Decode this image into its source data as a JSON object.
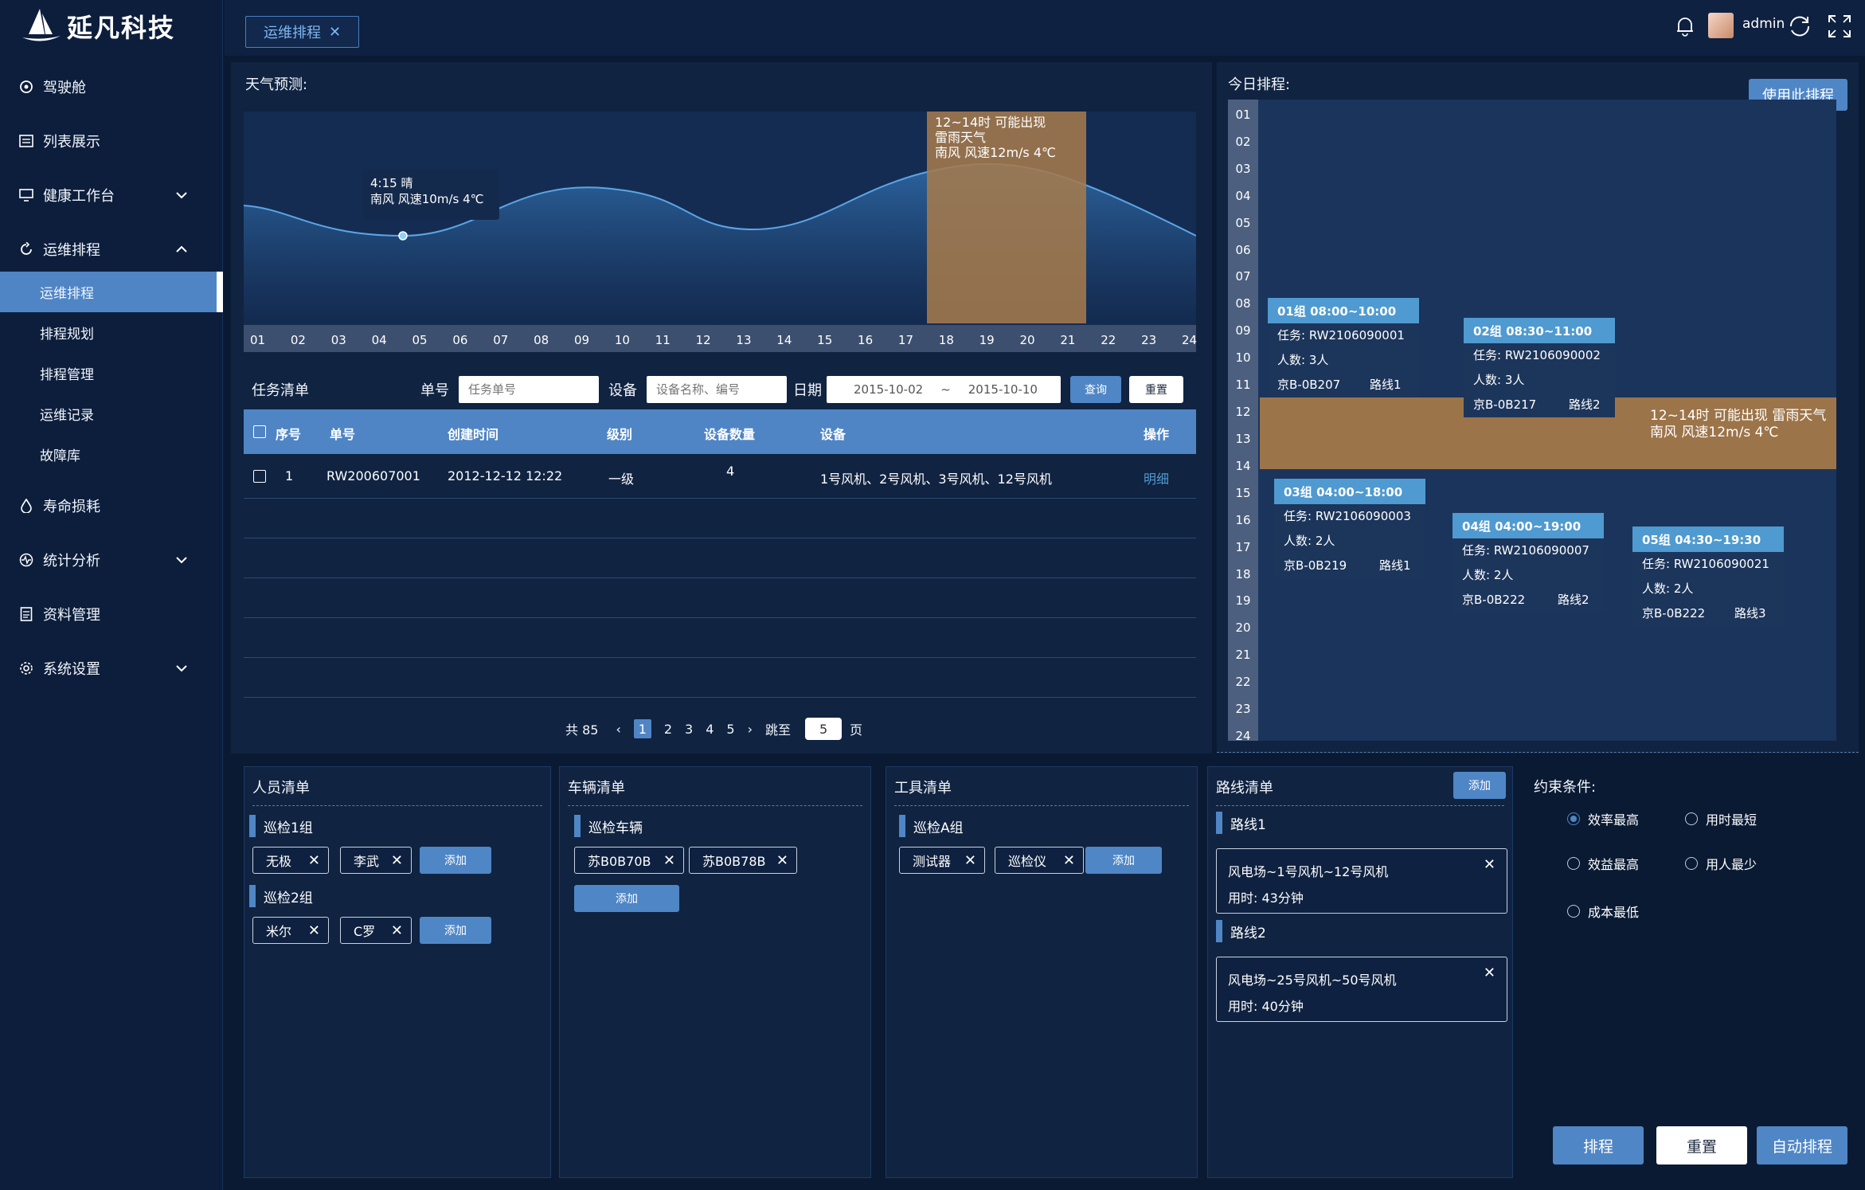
{
  "brand": {
    "name": "延凡科技"
  },
  "sidebar": {
    "items": [
      {
        "label": "驾驶舱"
      },
      {
        "label": "列表展示"
      },
      {
        "label": "健康工作台"
      },
      {
        "label": "运维排程"
      },
      {
        "label": "寿命损耗"
      },
      {
        "label": "统计分析"
      },
      {
        "label": "资料管理"
      },
      {
        "label": "系统设置"
      }
    ],
    "subitems": [
      {
        "label": "运维排程"
      },
      {
        "label": "排程规划"
      },
      {
        "label": "排程管理"
      },
      {
        "label": "运维记录"
      },
      {
        "label": "故障库"
      }
    ]
  },
  "topbar": {
    "tab": "运维排程",
    "user": "admin"
  },
  "weather": {
    "title": "天气预测:",
    "tooltip1": {
      "line1": "4:15 晴",
      "line2": "南风 风速10m/s  4℃"
    },
    "tooltip2": {
      "line1": "12~14时 可能出现",
      "line2": "雷雨天气",
      "line3": "南风 风速12m/s  4℃"
    },
    "hours": [
      "01",
      "02",
      "03",
      "04",
      "05",
      "06",
      "07",
      "08",
      "09",
      "10",
      "11",
      "12",
      "13",
      "14",
      "15",
      "16",
      "17",
      "18",
      "19",
      "20",
      "21",
      "22",
      "23",
      "24"
    ]
  },
  "tasks": {
    "title": "任务清单",
    "filter": {
      "no_label": "单号",
      "no_placeholder": "任务单号",
      "device_label": "设备",
      "device_placeholder": "设备名称、编号",
      "date_label": "日期",
      "date_from": "2015-10-02",
      "date_sep": "~",
      "date_to": "2015-10-10",
      "query": "查询",
      "reset": "重置"
    },
    "columns": [
      "序号",
      "单号",
      "创建时间",
      "级别",
      "设备数量",
      "设备",
      "操作"
    ],
    "rows": [
      {
        "index": "1",
        "no": "RW200607001",
        "created": "2012-12-12 12:22",
        "level": "一级",
        "count": "4",
        "devices": "1号风机、2号风机、3号风机、12号风机",
        "action": "明细"
      }
    ],
    "pager": {
      "total": "共 85",
      "pages": [
        "1",
        "2",
        "3",
        "4",
        "5"
      ],
      "goto": "跳至",
      "goto_value": "5",
      "page_unit": "页"
    }
  },
  "schedule": {
    "title": "今日排程:",
    "use_button": "使用此排程",
    "hours": [
      "01",
      "02",
      "03",
      "04",
      "05",
      "06",
      "07",
      "08",
      "09",
      "10",
      "11",
      "12",
      "13",
      "14",
      "15",
      "16",
      "17",
      "18",
      "19",
      "20",
      "21",
      "22",
      "23",
      "24"
    ],
    "storm": {
      "line1": "12~14时 可能出现 雷雨天气",
      "line2": "南风 风速12m/s  4℃"
    },
    "cards": [
      {
        "header": "01组  08:00~10:00",
        "task": "任务: RW2106090001",
        "people": "人数: 3人",
        "plate": "京B-0B207",
        "route": "路线1"
      },
      {
        "header": "02组  08:30~11:00",
        "task": "任务: RW2106090002",
        "people": "人数: 3人",
        "plate": "京B-0B217",
        "route": "路线2"
      },
      {
        "header": "03组  04:00~18:00",
        "task": "任务: RW2106090003",
        "people": "人数: 2人",
        "plate": "京B-0B219",
        "route": "路线1"
      },
      {
        "header": "04组  04:00~19:00",
        "task": "任务: RW2106090007",
        "people": "人数: 2人",
        "plate": "京B-0B222",
        "route": "路线2"
      },
      {
        "header": "05组  04:30~19:30",
        "task": "任务: RW2106090021",
        "people": "人数: 2人",
        "plate": "京B-0B222",
        "route": "路线3"
      }
    ]
  },
  "personnel": {
    "title": "人员清单",
    "groups": [
      {
        "name": "巡检1组",
        "members": [
          "无极",
          "李武"
        ]
      },
      {
        "name": "巡检2组",
        "members": [
          "米尔",
          "C罗"
        ]
      }
    ],
    "add": "添加"
  },
  "vehicles": {
    "title": "车辆清单",
    "group": "巡检车辆",
    "items": [
      "苏B0B70B",
      "苏B0B78B"
    ],
    "add": "添加"
  },
  "tools": {
    "title": "工具清单",
    "group": "巡检A组",
    "items": [
      "测试器",
      "巡检仪"
    ],
    "add": "添加"
  },
  "routes": {
    "title": "路线清单",
    "add": "添加",
    "items": [
      {
        "name": "路线1",
        "path": "风电场~1号风机~12号风机",
        "time": "用时: 43分钟"
      },
      {
        "name": "路线2",
        "path": "风电场~25号风机~50号风机",
        "time": "用时: 40分钟"
      }
    ]
  },
  "constraints": {
    "title": "约束条件:",
    "options": [
      {
        "label": "效率最高",
        "checked": true
      },
      {
        "label": "用时最短",
        "checked": false
      },
      {
        "label": "效益最高",
        "checked": false
      },
      {
        "label": "用人最少",
        "checked": false
      },
      {
        "label": "成本最低",
        "checked": false
      }
    ]
  },
  "actions": {
    "schedule": "排程",
    "reset": "重置",
    "auto": "自动排程"
  },
  "colors": {
    "accent": "#4f85c5",
    "storm": "#9c7449",
    "background": "#0a1a33"
  }
}
